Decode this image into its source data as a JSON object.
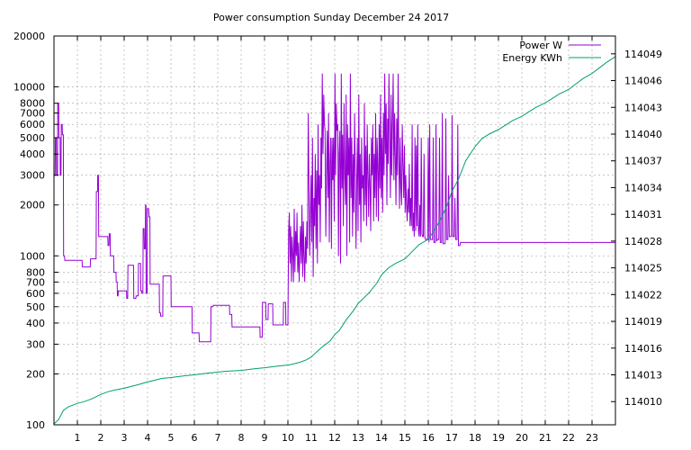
{
  "chart_data": {
    "type": "line",
    "title": "Power consumption Sunday December 24 2017",
    "x_ticks": [
      1,
      2,
      3,
      4,
      5,
      6,
      7,
      8,
      9,
      10,
      11,
      12,
      13,
      14,
      15,
      16,
      17,
      18,
      19,
      20,
      21,
      22,
      23
    ],
    "xlim": [
      0,
      24
    ],
    "y_scale": "log",
    "ylim": [
      100,
      20000
    ],
    "y_ticks": [
      100,
      200,
      300,
      400,
      500,
      600,
      700,
      800,
      1000,
      2000,
      3000,
      4000,
      5000,
      6000,
      7000,
      8000,
      10000,
      20000
    ],
    "y2_scale": "linear",
    "y2lim": [
      114007.4,
      114051.0
    ],
    "y2_ticks": [
      114010,
      114013,
      114016,
      114019,
      114022,
      114025,
      114028,
      114031,
      114034,
      114037,
      114040,
      114043,
      114046,
      114049
    ],
    "grid": true,
    "legend_position": "top-right",
    "series": [
      {
        "name": "Power W",
        "axis": "y",
        "color": "#9400d3",
        "x": [
          0,
          0.05,
          0.06,
          0.1,
          0.11,
          0.15,
          0.16,
          0.2,
          0.21,
          0.26,
          0.27,
          0.3,
          0.31,
          0.35,
          0.36,
          0.4,
          0.41,
          0.45,
          0.46,
          0.5,
          1.2,
          1.21,
          1.55,
          1.56,
          1.6,
          1.8,
          1.81,
          1.86,
          1.87,
          1.9,
          1.91,
          2.0,
          2.3,
          2.31,
          2.35,
          2.36,
          2.4,
          2.41,
          2.55,
          2.56,
          2.65,
          2.66,
          2.7,
          2.71,
          2.74,
          2.75,
          3.0,
          3.1,
          3.11,
          3.15,
          3.16,
          3.4,
          3.41,
          3.5,
          3.51,
          3.6,
          3.61,
          3.7,
          3.71,
          3.75,
          3.76,
          3.8,
          3.81,
          3.85,
          3.86,
          3.9,
          3.91,
          3.93,
          3.94,
          3.98,
          3.99,
          4.05,
          4.06,
          4.1,
          4.11,
          4.5,
          4.51,
          4.55,
          4.56,
          4.65,
          4.66,
          5.0,
          5.01,
          5.9,
          5.91,
          6.2,
          6.21,
          6.7,
          6.71,
          6.8,
          6.81,
          7.5,
          7.51,
          7.6,
          7.61,
          8.8,
          8.81,
          8.9,
          8.91,
          9.05,
          9.06,
          9.15,
          9.16,
          9.35,
          9.36,
          9.8,
          9.81,
          9.9,
          9.91,
          10.0,
          10.03,
          10.06,
          10.09,
          10.12,
          10.15,
          10.18,
          10.21,
          10.24,
          10.27,
          10.3,
          10.33,
          10.36,
          10.39,
          10.42,
          10.45,
          10.48,
          10.51,
          10.54,
          10.57,
          10.6,
          10.63,
          10.66,
          10.69,
          10.72,
          10.75,
          10.78,
          10.81,
          10.84,
          10.87,
          10.9,
          10.93,
          10.96,
          10.99,
          11.02,
          11.05,
          11.08,
          11.11,
          11.14,
          11.17,
          11.2,
          11.23,
          11.26,
          11.29,
          11.32,
          11.35,
          11.38,
          11.41,
          11.44,
          11.47,
          11.5,
          11.53,
          11.56,
          11.59,
          11.62,
          11.65,
          11.68,
          11.71,
          11.74,
          11.77,
          11.8,
          11.83,
          11.86,
          11.89,
          11.92,
          11.95,
          11.98,
          12.01,
          12.04,
          12.07,
          12.1,
          12.13,
          12.16,
          12.19,
          12.22,
          12.25,
          12.28,
          12.31,
          12.34,
          12.37,
          12.4,
          12.43,
          12.46,
          12.49,
          12.52,
          12.55,
          12.58,
          12.61,
          12.64,
          12.67,
          12.7,
          12.73,
          12.76,
          12.79,
          12.82,
          12.85,
          12.88,
          12.91,
          12.94,
          12.97,
          13.0,
          13.03,
          13.06,
          13.09,
          13.12,
          13.15,
          13.18,
          13.21,
          13.24,
          13.27,
          13.3,
          13.33,
          13.36,
          13.39,
          13.42,
          13.45,
          13.48,
          13.51,
          13.54,
          13.57,
          13.6,
          13.63,
          13.66,
          13.69,
          13.72,
          13.75,
          13.78,
          13.81,
          13.84,
          13.87,
          13.9,
          13.93,
          13.96,
          13.99,
          14.02,
          14.05,
          14.08,
          14.11,
          14.14,
          14.17,
          14.2,
          14.23,
          14.26,
          14.29,
          14.32,
          14.35,
          14.38,
          14.41,
          14.44,
          14.47,
          14.5,
          14.53,
          14.56,
          14.59,
          14.62,
          14.65,
          14.68,
          14.71,
          14.74,
          14.77,
          14.8,
          14.83,
          14.86,
          14.89,
          14.92,
          14.95,
          14.98,
          15.01,
          15.04,
          15.07,
          15.1,
          15.13,
          15.16,
          15.19,
          15.22,
          15.25,
          15.28,
          15.31,
          15.34,
          15.37,
          15.4,
          15.43,
          15.46,
          15.49,
          15.52,
          15.55,
          15.58,
          15.61,
          15.64,
          15.67,
          15.7,
          15.73,
          15.76,
          15.79,
          15.82,
          15.85,
          15.88,
          15.91,
          15.94,
          15.97,
          16.0,
          16.03,
          16.06,
          16.09,
          16.12,
          16.15,
          16.18,
          16.21,
          16.24,
          16.27,
          16.3,
          16.33,
          16.36,
          16.39,
          16.42,
          16.45,
          16.48,
          16.51,
          16.54,
          16.57,
          16.6,
          16.63,
          16.66,
          16.69,
          16.72,
          16.75,
          16.78,
          16.81,
          16.84,
          16.87,
          16.9,
          16.93,
          16.96,
          16.99,
          17.02,
          17.05,
          17.08,
          17.11,
          17.14,
          17.17,
          17.2,
          17.23,
          17.26,
          17.29,
          17.32,
          17.35,
          17.38,
          17.41,
          17.44,
          17.47,
          17.5,
          17.53,
          17.6,
          17.61,
          17.63,
          17.64,
          18.3,
          18.31,
          18.33,
          18.34,
          18.9,
          18.91,
          19.2,
          19.21,
          19.23,
          19.24,
          19.7,
          19.71,
          19.73,
          19.74,
          20.2,
          20.21,
          20.23,
          20.24,
          21.0,
          21.01,
          21.03,
          21.04,
          21.3,
          21.31,
          21.33,
          21.34,
          22.0,
          22.01,
          22.03,
          22.04,
          22.4,
          22.41,
          22.43,
          22.44,
          22.6,
          22.61,
          22.63,
          22.64,
          23.0,
          23.01,
          23.03,
          23.04,
          23.5,
          23.51,
          23.53,
          23.54,
          23.9,
          23.91,
          23.95,
          23.96,
          24.0
        ],
        "y": [
          3000,
          3000,
          5000,
          5000,
          3000,
          3000,
          8000,
          8000,
          5000,
          5000,
          3000,
          3000,
          6000,
          6000,
          5200,
          5200,
          1000,
          1000,
          940,
          940,
          940,
          860,
          860,
          960,
          960,
          960,
          2400,
          2400,
          3000,
          3000,
          1300,
          1300,
          1300,
          1150,
          1150,
          1350,
          1350,
          1000,
          1000,
          800,
          800,
          700,
          700,
          580,
          580,
          620,
          620,
          620,
          560,
          560,
          880,
          880,
          560,
          560,
          580,
          580,
          900,
          900,
          620,
          620,
          600,
          600,
          1450,
          1450,
          1100,
          1100,
          2000,
          2000,
          600,
          600,
          1900,
          1900,
          1700,
          1700,
          680,
          680,
          460,
          460,
          440,
          440,
          760,
          760,
          500,
          500,
          350,
          350,
          310,
          310,
          500,
          500,
          510,
          510,
          450,
          450,
          380,
          380,
          330,
          330,
          530,
          530,
          420,
          420,
          520,
          520,
          390,
          390,
          530,
          530,
          390,
          390,
          1400,
          1800,
          900,
          1500,
          700,
          1300,
          1000,
          700,
          1900,
          800,
          1400,
          1000,
          1800,
          800,
          1200,
          700,
          1100,
          1500,
          900,
          2000,
          750,
          1600,
          1000,
          700,
          1300,
          900,
          1600,
          1100,
          7000,
          2500,
          1000,
          1800,
          3000,
          1200,
          5000,
          750,
          2200,
          1500,
          4000,
          1100,
          3200,
          900,
          6000,
          2000,
          3000,
          1200,
          5000,
          2500,
          12000,
          4000,
          9000,
          6000,
          5500,
          1300,
          3000,
          5500,
          2200,
          7000,
          1200,
          3600,
          5000,
          1100,
          5000,
          2800,
          5000,
          1600,
          12000,
          3000,
          8000,
          5500,
          6000,
          1000,
          4000,
          5500,
          900,
          12000,
          2500,
          5200,
          1500,
          8000,
          3000,
          2000,
          9000,
          1000,
          6000,
          3000,
          5000,
          1200,
          12000,
          2200,
          5000,
          1300,
          4000,
          1800,
          7000,
          3000,
          1100,
          2600,
          5000,
          1400,
          9000,
          2000,
          4000,
          1200,
          5000,
          2500,
          3000,
          1600,
          8000,
          2000,
          4500,
          1500,
          6000,
          3000,
          1700,
          4000,
          2500,
          1400,
          5000,
          3000,
          6000,
          1600,
          4000,
          2200,
          7000,
          1700,
          5000,
          3500,
          1600,
          6000,
          2500,
          9000,
          2200,
          5000,
          1800,
          7000,
          3000,
          12000,
          4000,
          8000,
          2000,
          6500,
          3500,
          12000,
          5000,
          2200,
          9000,
          3000,
          6000,
          12000,
          2800,
          7000,
          4000,
          2000,
          6500,
          3000,
          12000,
          4000,
          1900,
          5000,
          2500,
          2000,
          6000,
          3500,
          2200,
          4500,
          1800,
          3000,
          2000,
          1600,
          2500,
          1800,
          3500,
          1500,
          2200,
          1500,
          6000,
          1400,
          1800,
          1300,
          5000,
          1400,
          4500,
          1500,
          6000,
          1400,
          1300,
          2000,
          1300,
          5000,
          1350,
          1300,
          1300,
          4000,
          1300,
          1250,
          1250,
          1250,
          1250,
          5000,
          1200,
          6000,
          1250,
          1250,
          1250,
          1250,
          5000,
          1200,
          1200,
          1200,
          6000,
          1220,
          1250,
          1250,
          1250,
          5000,
          1200,
          1200,
          1200,
          7000,
          1180,
          1180,
          1180,
          1180,
          6500,
          1250,
          1250,
          1250,
          3000,
          1300,
          1300,
          1300,
          1300,
          6800,
          1300,
          1300,
          1300,
          2200,
          1250,
          1250,
          1250,
          6000,
          1150,
          1150,
          1150,
          1200,
          1200,
          1200,
          1200,
          1200,
          1200,
          1200,
          1200,
          1200,
          1200,
          1200,
          1200,
          1200,
          1200,
          1200,
          1200,
          1200,
          1200,
          1200,
          1200,
          1200,
          1200,
          1200,
          1200,
          1200,
          1200,
          1200,
          1200,
          1200,
          1200,
          1200,
          1200,
          1200,
          1200,
          1200,
          1200,
          1200,
          1200,
          1200,
          1200,
          1200,
          1200,
          1200,
          1200,
          1200,
          1200,
          1200,
          1200,
          1200,
          1200,
          1200,
          1200,
          1200,
          1200,
          1200,
          1200,
          1200,
          1200,
          1200,
          1200,
          1200
        ]
      },
      {
        "name": "Energy KWh",
        "axis": "y2",
        "color": "#009e73",
        "x": [
          0.0,
          0.2,
          0.4,
          0.6,
          0.8,
          1.0,
          1.3,
          1.6,
          2.0,
          2.3,
          2.6,
          3.0,
          3.3,
          3.6,
          4.0,
          4.3,
          4.6,
          5.0,
          5.3,
          5.6,
          6.0,
          6.3,
          6.6,
          7.0,
          7.3,
          7.6,
          8.0,
          8.3,
          8.6,
          9.0,
          9.3,
          9.6,
          10.0,
          10.2,
          10.5,
          10.8,
          11.0,
          11.2,
          11.5,
          11.8,
          12.0,
          12.2,
          12.5,
          12.8,
          13.0,
          13.2,
          13.5,
          13.8,
          14.0,
          14.3,
          14.6,
          15.0,
          15.3,
          15.6,
          16.0,
          16.2,
          16.5,
          16.8,
          17.0,
          17.3,
          17.6,
          18.0,
          18.3,
          18.6,
          19.0,
          19.3,
          19.6,
          20.0,
          20.3,
          20.6,
          21.0,
          21.3,
          21.6,
          22.0,
          22.3,
          22.6,
          23.0,
          23.3,
          23.6,
          24.0
        ],
        "y": [
          114007.5,
          114008.0,
          114009.0,
          114009.4,
          114009.6,
          114009.8,
          114010.0,
          114010.3,
          114010.8,
          114011.1,
          114011.3,
          114011.5,
          114011.7,
          114011.9,
          114012.2,
          114012.4,
          114012.6,
          114012.7,
          114012.8,
          114012.9,
          114013.0,
          114013.1,
          114013.2,
          114013.3,
          114013.4,
          114013.45,
          114013.5,
          114013.6,
          114013.7,
          114013.8,
          114013.9,
          114014.0,
          114014.1,
          114014.2,
          114014.4,
          114014.7,
          114015.0,
          114015.5,
          114016.2,
          114016.8,
          114017.5,
          114018.0,
          114019.2,
          114020.2,
          114021.0,
          114021.5,
          114022.3,
          114023.3,
          114024.2,
          114025.0,
          114025.5,
          114026.0,
          114026.8,
          114027.6,
          114028.2,
          114029.0,
          114030.3,
          114032.0,
          114033.5,
          114035.0,
          114037.0,
          114038.6,
          114039.5,
          114040.0,
          114040.5,
          114041.0,
          114041.5,
          114042.0,
          114042.5,
          114043.0,
          114043.5,
          114044.0,
          114044.5,
          114045.0,
          114045.6,
          114046.2,
          114046.8,
          114047.4,
          114048.0,
          114048.7
        ]
      }
    ]
  }
}
